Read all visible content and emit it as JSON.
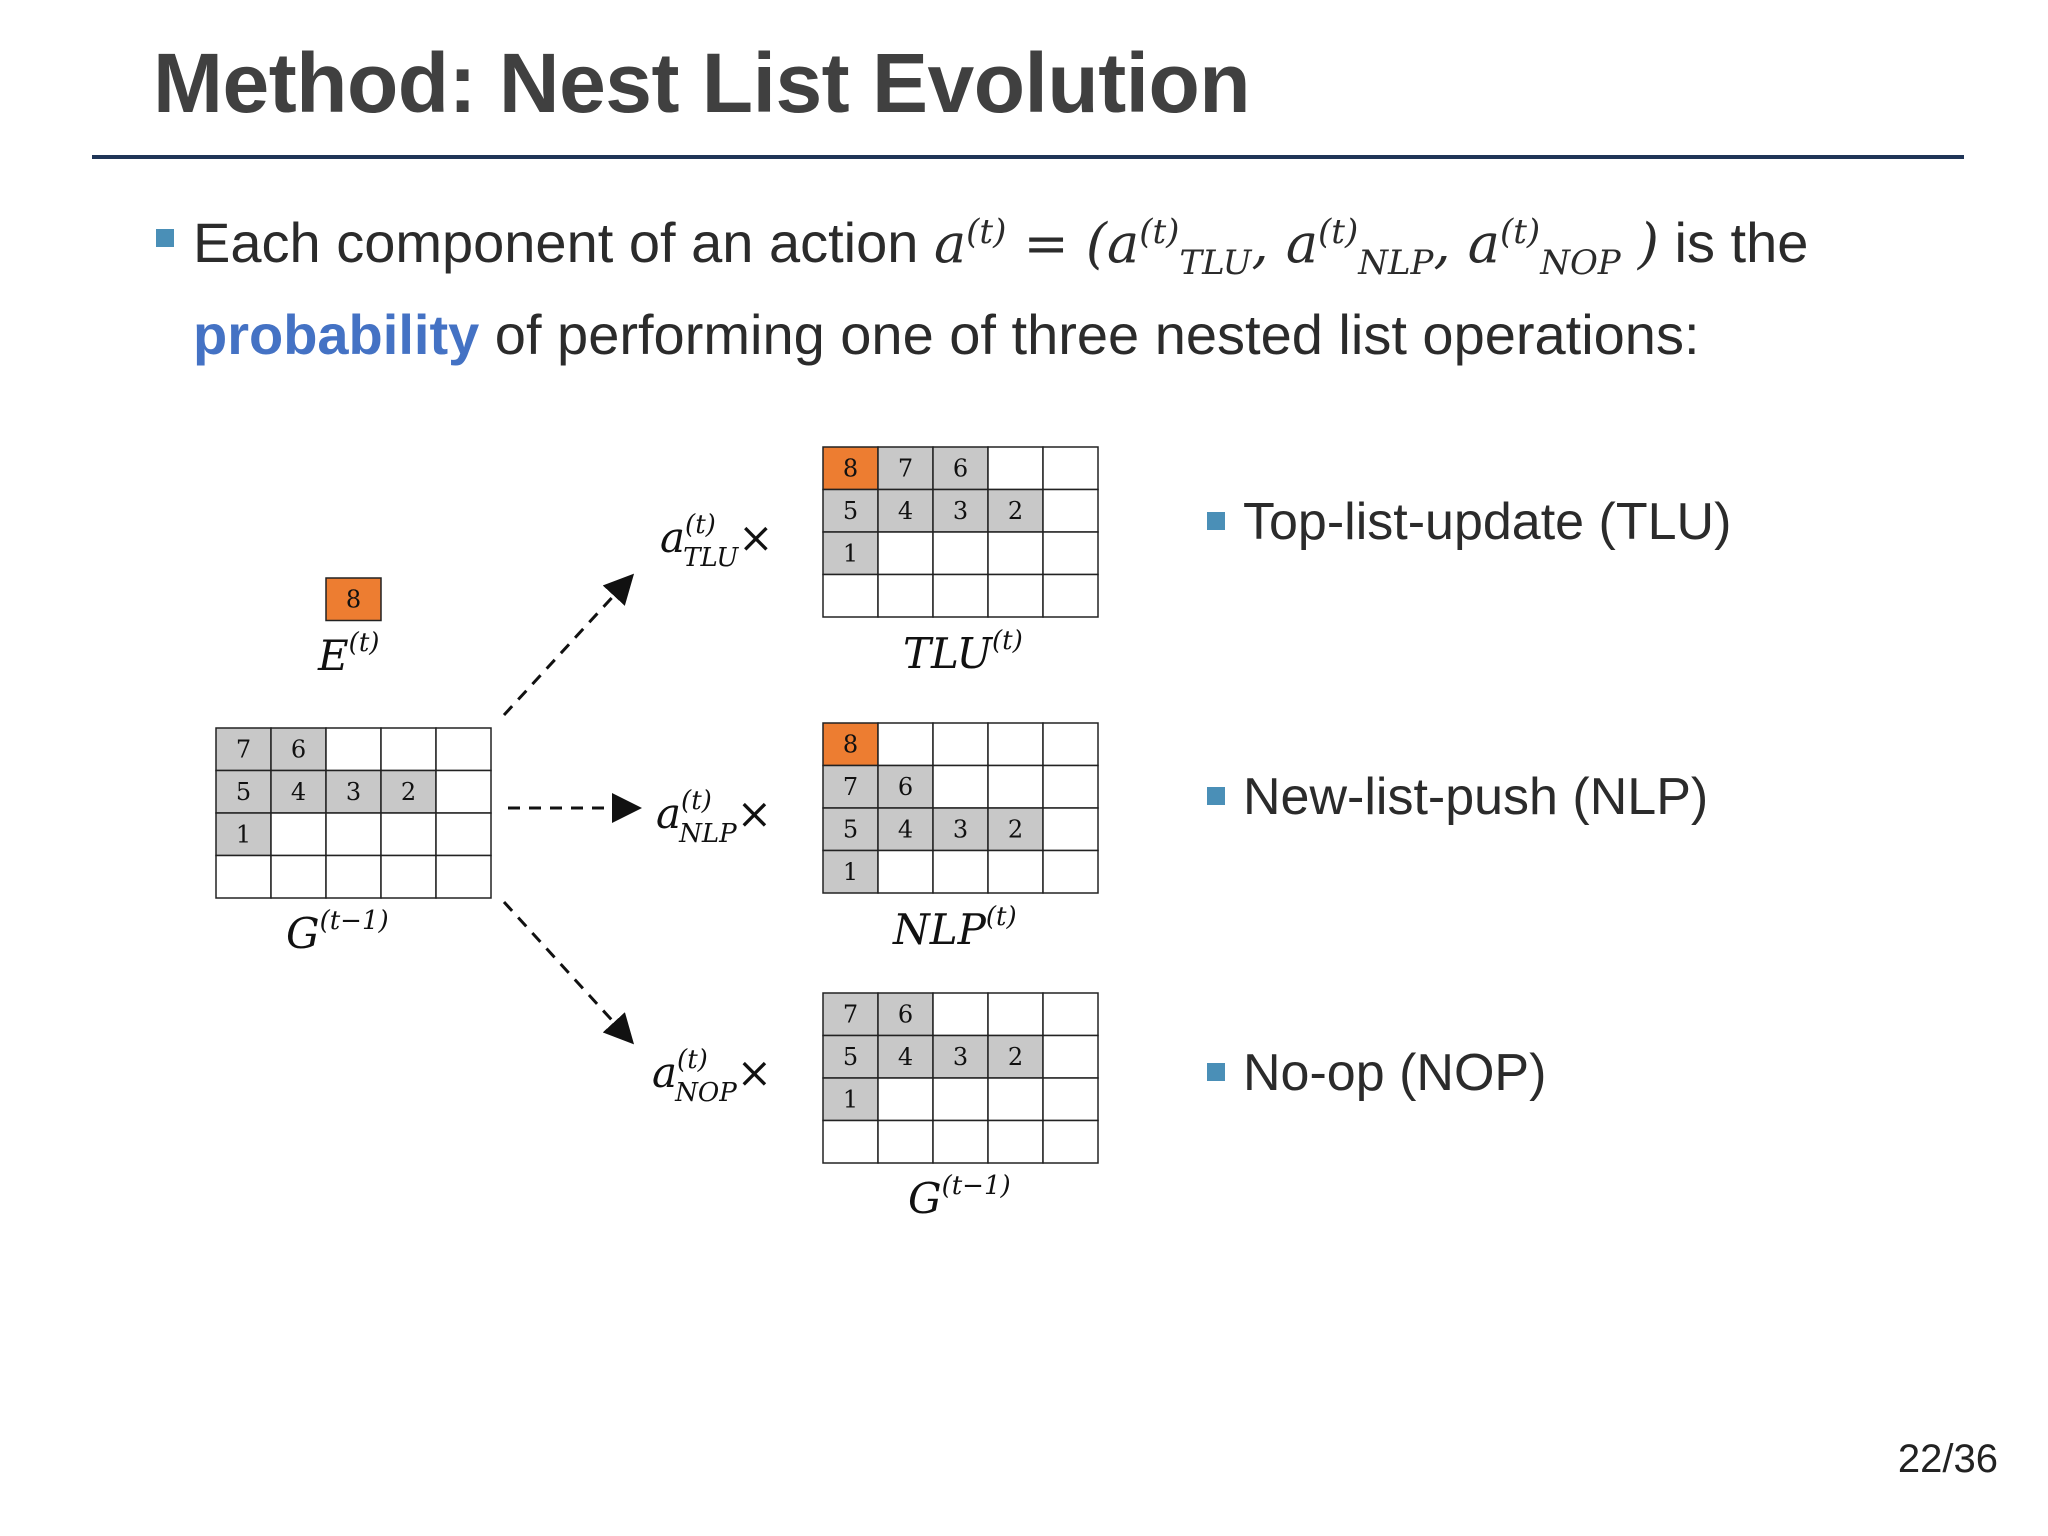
{
  "title": "Method: Nest List Evolution",
  "intro": {
    "prefix": "Each component of an action",
    "formula_lhs": "a",
    "formula_t": "(t)",
    "formula_eq": " = (",
    "comp1": "a",
    "comp1_sub": "TLU",
    "comp2": "a",
    "comp2_sub": "NLP",
    "comp3": "a",
    "comp3_sub": "NOP",
    "formula_close": ")",
    "suffix": "is the",
    "keyword": "probability",
    "rest": "of performing one of three nested list operations:"
  },
  "diagram": {
    "new_element": {
      "value": "8",
      "label": "E",
      "label_sup": "(t)"
    },
    "source_grid": {
      "label": "G",
      "label_sup": "(t−1)",
      "rows": [
        [
          "7",
          "6",
          "",
          "",
          ""
        ],
        [
          "5",
          "4",
          "3",
          "2",
          ""
        ],
        [
          "1",
          "",
          "",
          "",
          ""
        ],
        [
          "",
          "",
          "",
          "",
          ""
        ]
      ]
    },
    "branches": [
      {
        "coef": "a",
        "coef_sup": "(t)",
        "coef_sub": "TLU",
        "times": "×",
        "grid_label": "TLU",
        "grid_label_sup": "(t)",
        "rows": [
          [
            "8",
            "7",
            "6",
            "",
            ""
          ],
          [
            "5",
            "4",
            "3",
            "2",
            ""
          ],
          [
            "1",
            "",
            "",
            "",
            ""
          ],
          [
            "",
            "",
            "",
            "",
            ""
          ]
        ],
        "highlight": [
          [
            0,
            0
          ]
        ]
      },
      {
        "coef": "a",
        "coef_sup": "(t)",
        "coef_sub": "NLP",
        "times": "×",
        "grid_label": "NLP",
        "grid_label_sup": "(t)",
        "rows": [
          [
            "8",
            "",
            "",
            "",
            ""
          ],
          [
            "7",
            "6",
            "",
            "",
            ""
          ],
          [
            "5",
            "4",
            "3",
            "2",
            ""
          ],
          [
            "1",
            "",
            "",
            "",
            ""
          ]
        ],
        "highlight": [
          [
            0,
            0
          ]
        ]
      },
      {
        "coef": "a",
        "coef_sup": "(t)",
        "coef_sub": "NOP",
        "times": "×",
        "grid_label": "G",
        "grid_label_sup": "(t−1)",
        "rows": [
          [
            "7",
            "6",
            "",
            "",
            ""
          ],
          [
            "5",
            "4",
            "3",
            "2",
            ""
          ],
          [
            "1",
            "",
            "",
            "",
            ""
          ],
          [
            "",
            "",
            "",
            "",
            ""
          ]
        ],
        "highlight": []
      }
    ]
  },
  "operations": [
    {
      "label": "Top-list-update (TLU)"
    },
    {
      "label": "New-list-push (NLP)"
    },
    {
      "label": "No-op (NOP)"
    }
  ],
  "page_number": "22/36",
  "colors": {
    "highlight": "#ed7d31",
    "filled_cell": "#c8c8c8",
    "bullet": "#4a8fb7",
    "keyword": "#4472c4",
    "rule": "#1f3557"
  }
}
